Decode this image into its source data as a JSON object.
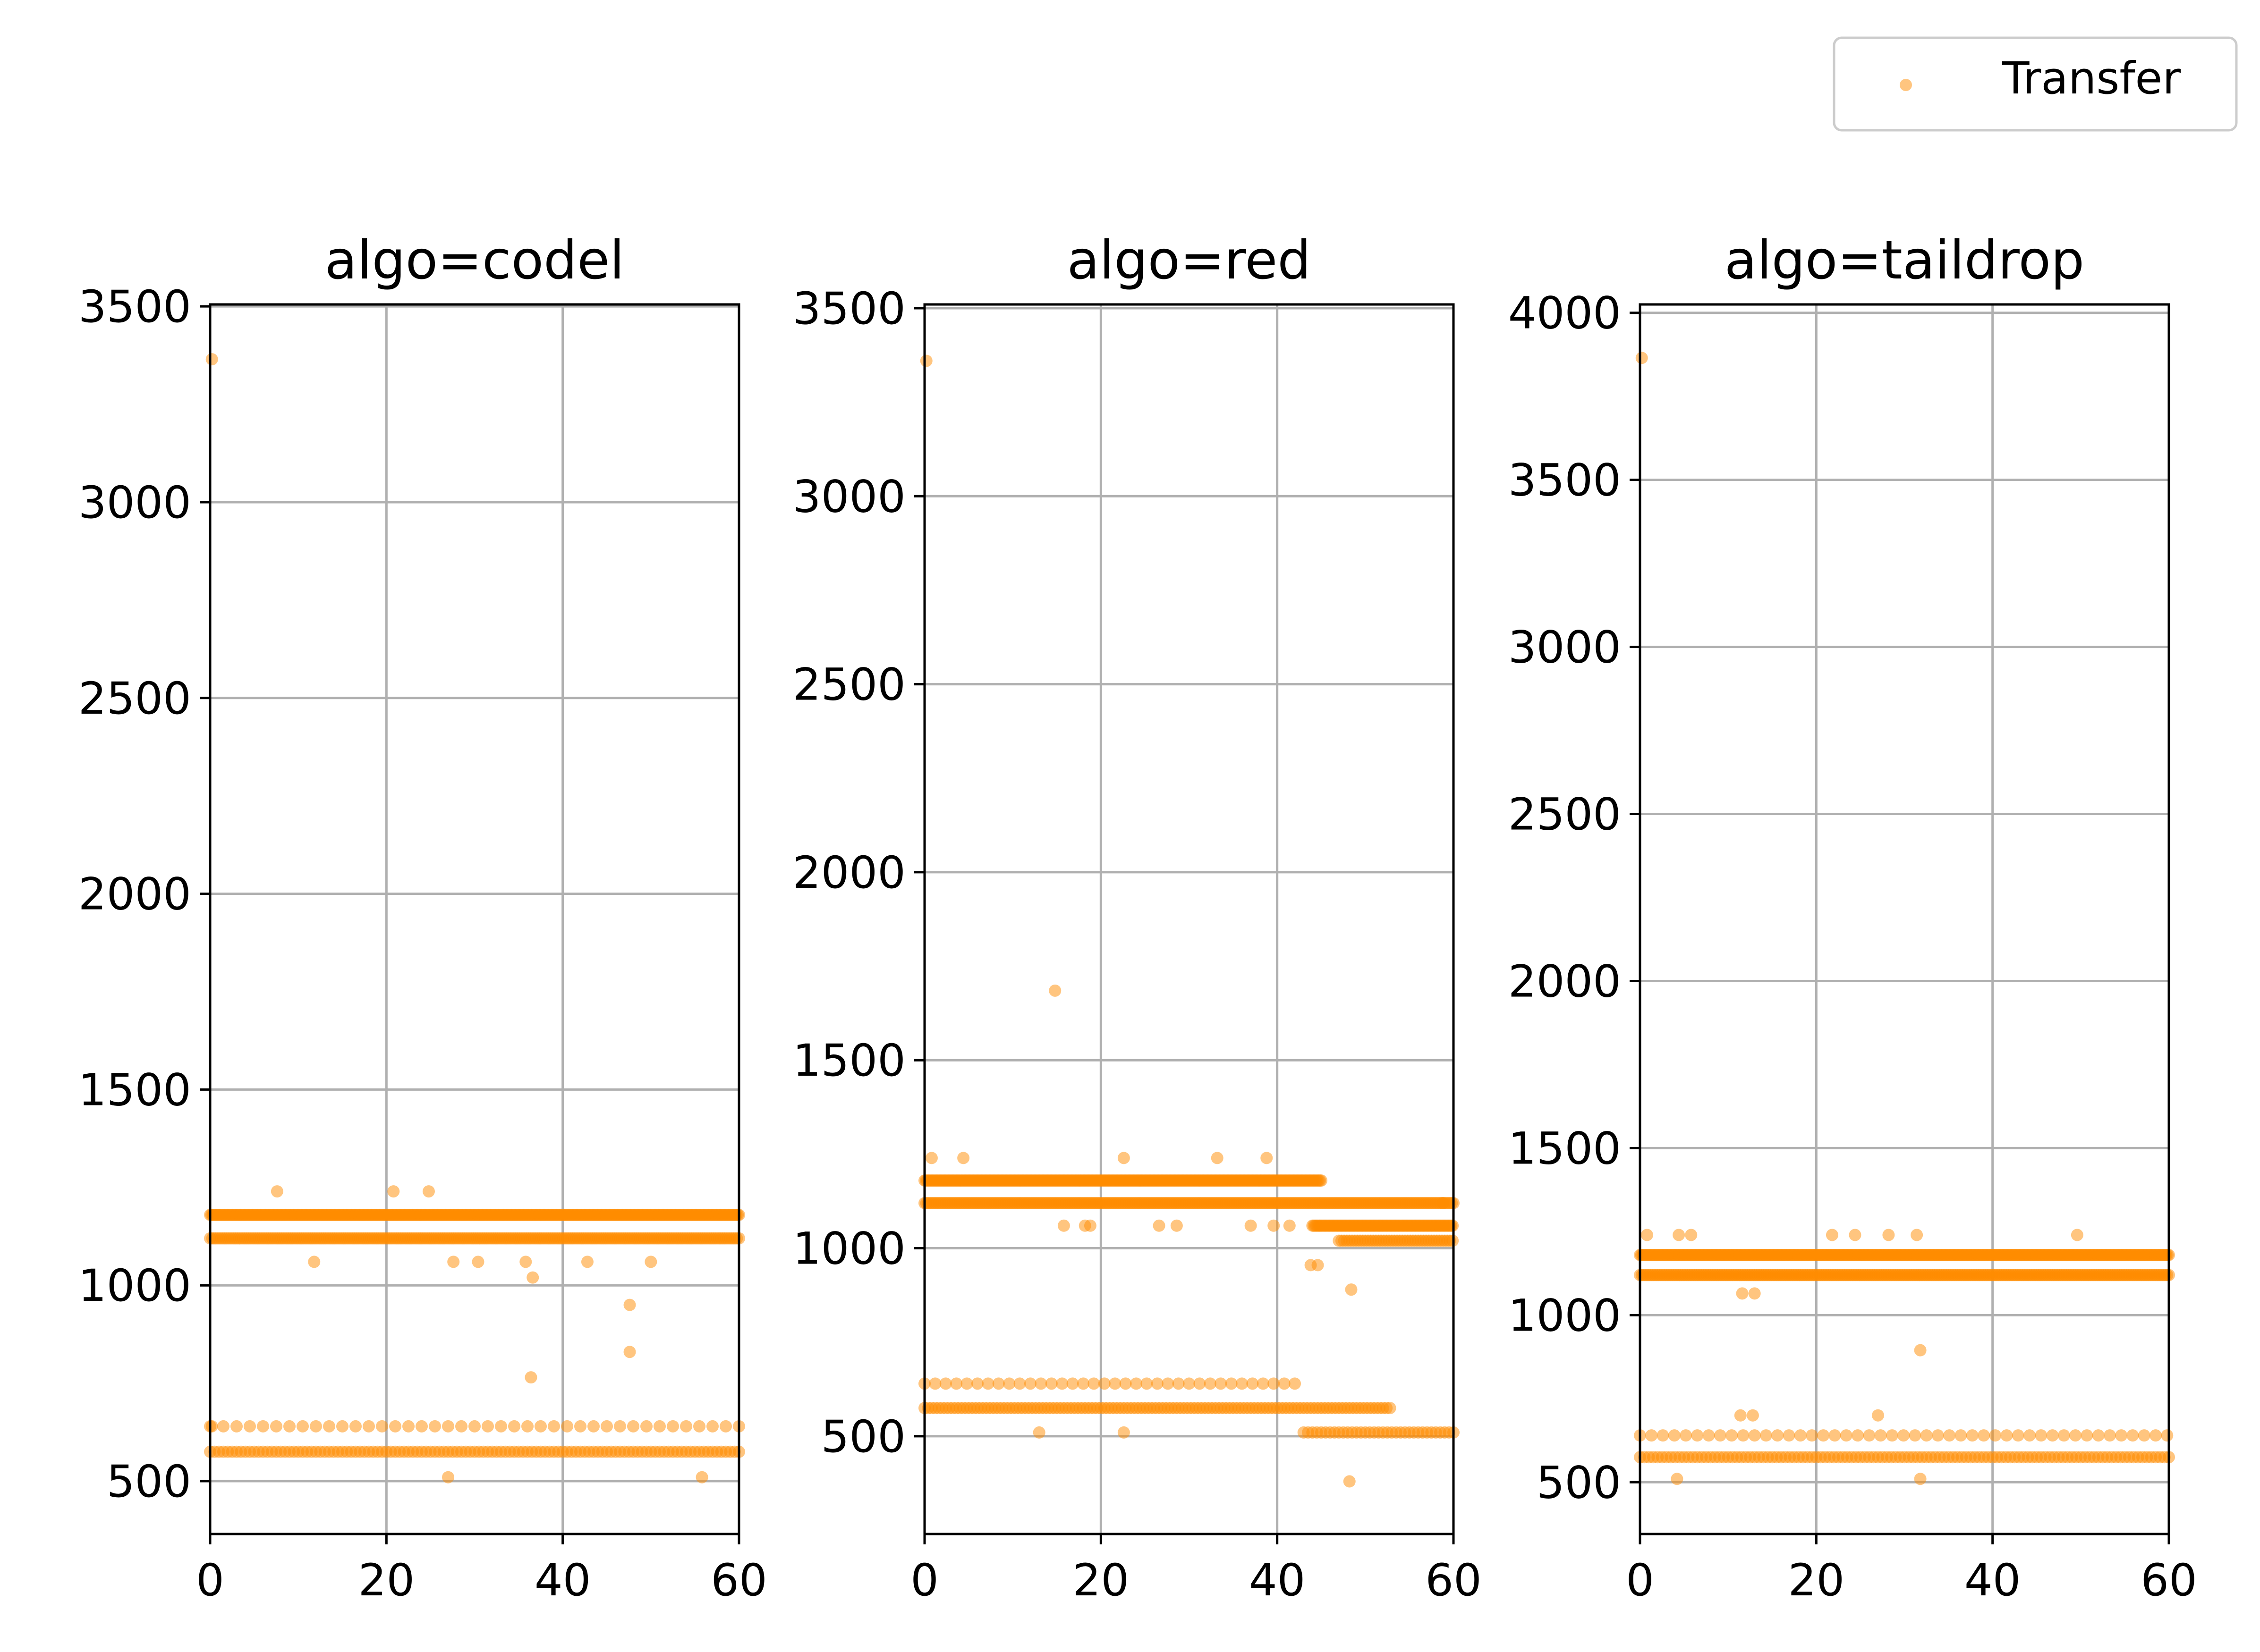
{
  "legend": {
    "label": "Transfer",
    "placement": "top-right"
  },
  "colors": {
    "point": "#ff8c00",
    "grid": "#b0b0b0",
    "axis": "#000000",
    "background": "#ffffff"
  },
  "chart_data": [
    {
      "type": "scatter",
      "title": "algo=codel",
      "xlabel": "",
      "ylabel": "",
      "xlim": [
        0,
        60
      ],
      "ylim": [
        365,
        3505
      ],
      "xticks": [
        0,
        20,
        40,
        60
      ],
      "yticks": [
        500,
        1000,
        1500,
        2000,
        2500,
        3000,
        3500
      ],
      "grid": true,
      "series": [
        {
          "name": "Transfer",
          "bands": [
            {
              "y": 1180,
              "x": [
                0,
                60
              ],
              "step": 0.15
            },
            {
              "y": 1120,
              "x": [
                0,
                60
              ],
              "step": 0.25
            },
            {
              "y": 575,
              "x": [
                0,
                60
              ],
              "step": 0.5
            },
            {
              "y": 640,
              "x": [
                0,
                60
              ],
              "step": 1.5
            }
          ],
          "points": [
            [
              0.2,
              3365
            ],
            [
              7.6,
              1240
            ],
            [
              11.8,
              1060
            ],
            [
              20.8,
              1240
            ],
            [
              24.8,
              1240
            ],
            [
              27.6,
              1060
            ],
            [
              30.4,
              1060
            ],
            [
              35.8,
              1060
            ],
            [
              36.6,
              1020
            ],
            [
              36.4,
              765
            ],
            [
              42.8,
              1060
            ],
            [
              47.6,
              950
            ],
            [
              47.6,
              830
            ],
            [
              50,
              1060
            ],
            [
              27,
              510
            ],
            [
              55.8,
              510
            ],
            [
              0.2,
              640
            ]
          ]
        }
      ]
    },
    {
      "type": "scatter",
      "title": "algo=red",
      "xlabel": "",
      "ylabel": "",
      "xlim": [
        0,
        60
      ],
      "ylim": [
        240,
        3510
      ],
      "xticks": [
        0,
        20,
        40,
        60
      ],
      "yticks": [
        500,
        1000,
        1500,
        2000,
        2500,
        3000,
        3500
      ],
      "grid": true,
      "series": [
        {
          "name": "Transfer",
          "bands": [
            {
              "y": 1180,
              "x": [
                0,
                45
              ],
              "step": 0.15
            },
            {
              "y": 1120,
              "x": [
                0,
                60
              ],
              "step": 0.2
            },
            {
              "y": 1060,
              "x": [
                44,
                60
              ],
              "step": 0.15
            },
            {
              "y": 1020,
              "x": [
                47,
                60
              ],
              "step": 0.3
            },
            {
              "y": 575,
              "x": [
                0,
                53
              ],
              "step": 0.4
            },
            {
              "y": 640,
              "x": [
                0,
                42
              ],
              "step": 1.2
            },
            {
              "y": 510,
              "x": [
                43,
                60
              ],
              "step": 0.5
            }
          ],
          "points": [
            [
              0.2,
              3360
            ],
            [
              14.8,
              1685
            ],
            [
              0.8,
              1240
            ],
            [
              4.4,
              1240
            ],
            [
              22.6,
              1240
            ],
            [
              33.2,
              1240
            ],
            [
              38.8,
              1240
            ],
            [
              15.8,
              1060
            ],
            [
              18.2,
              1060
            ],
            [
              18.8,
              1060
            ],
            [
              26.6,
              1060
            ],
            [
              28.6,
              1060
            ],
            [
              37,
              1060
            ],
            [
              39.6,
              1060
            ],
            [
              41.4,
              1060
            ],
            [
              43.8,
              955
            ],
            [
              44.6,
              955
            ],
            [
              48.4,
              890
            ],
            [
              48.2,
              380
            ],
            [
              13,
              510
            ],
            [
              22.6,
              510
            ],
            [
              58.8,
              1120
            ]
          ]
        }
      ]
    },
    {
      "type": "scatter",
      "title": "algo=taildrop",
      "xlabel": "",
      "ylabel": "",
      "xlim": [
        0,
        60
      ],
      "ylim": [
        345,
        4025
      ],
      "xticks": [
        0,
        20,
        40,
        60
      ],
      "yticks": [
        500,
        1000,
        1500,
        2000,
        2500,
        3000,
        3500,
        4000
      ],
      "grid": true,
      "series": [
        {
          "name": "Transfer",
          "bands": [
            {
              "y": 1180,
              "x": [
                0,
                60
              ],
              "step": 0.15
            },
            {
              "y": 1120,
              "x": [
                0,
                60
              ],
              "step": 0.2
            },
            {
              "y": 575,
              "x": [
                0,
                60
              ],
              "step": 0.5
            },
            {
              "y": 640,
              "x": [
                0,
                60
              ],
              "step": 1.3
            }
          ],
          "points": [
            [
              0.2,
              3865
            ],
            [
              0.8,
              1240
            ],
            [
              4.4,
              1240
            ],
            [
              5.8,
              1240
            ],
            [
              21.8,
              1240
            ],
            [
              24.4,
              1240
            ],
            [
              28.2,
              1240
            ],
            [
              31.4,
              1240
            ],
            [
              49.6,
              1240
            ],
            [
              11.6,
              1065
            ],
            [
              13,
              1065
            ],
            [
              31.8,
              895
            ],
            [
              11.4,
              700
            ],
            [
              12.8,
              700
            ],
            [
              27,
              700
            ],
            [
              4.2,
              510
            ],
            [
              31.8,
              510
            ]
          ]
        }
      ]
    }
  ]
}
